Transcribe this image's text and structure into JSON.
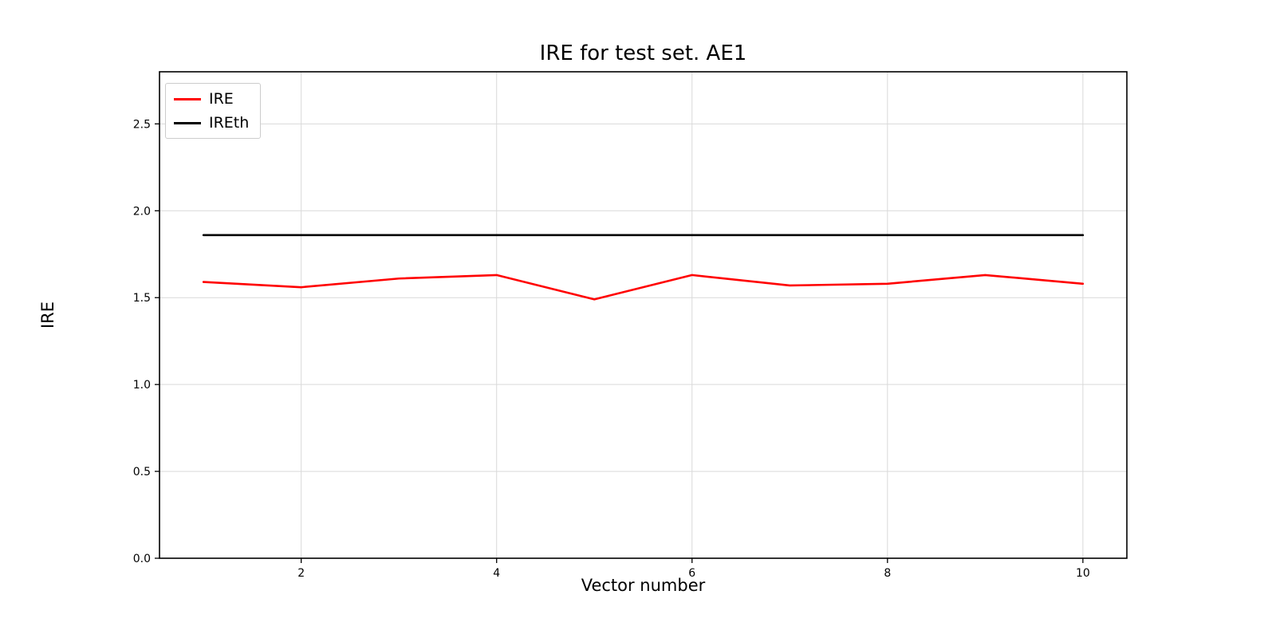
{
  "figure": {
    "title": "IRE for test set. AE1",
    "xlabel": "Vector number",
    "ylabel": "IRE"
  },
  "legend": {
    "items": [
      {
        "label": "IRE",
        "color": "#ff0000"
      },
      {
        "label": "IREth",
        "color": "#000000"
      }
    ]
  },
  "chart_data": {
    "type": "line",
    "title": "IRE for test set. AE1",
    "xlabel": "Vector number",
    "ylabel": "IRE",
    "x": [
      1,
      2,
      3,
      4,
      5,
      6,
      7,
      8,
      9,
      10
    ],
    "series": [
      {
        "name": "IRE",
        "color": "#ff0000",
        "values": [
          1.59,
          1.56,
          1.61,
          1.63,
          1.49,
          1.63,
          1.57,
          1.58,
          1.63,
          1.58
        ]
      },
      {
        "name": "IREth",
        "color": "#000000",
        "values": [
          1.86,
          1.86,
          1.86,
          1.86,
          1.86,
          1.86,
          1.86,
          1.86,
          1.86,
          1.86
        ]
      }
    ],
    "xlim": [
      0.55,
      10.45
    ],
    "ylim": [
      0.0,
      2.8
    ],
    "xticks": [
      2,
      4,
      6,
      8,
      10
    ],
    "xtick_labels": [
      "2",
      "4",
      "6",
      "8",
      "10"
    ],
    "yticks": [
      0.0,
      0.5,
      1.0,
      1.5,
      2.0,
      2.5
    ],
    "ytick_labels": [
      "0.0",
      "0.5",
      "1.0",
      "1.5",
      "2.0",
      "2.5"
    ],
    "grid": true,
    "grid_color": "#d9d9d9",
    "legend_position": "upper left"
  }
}
